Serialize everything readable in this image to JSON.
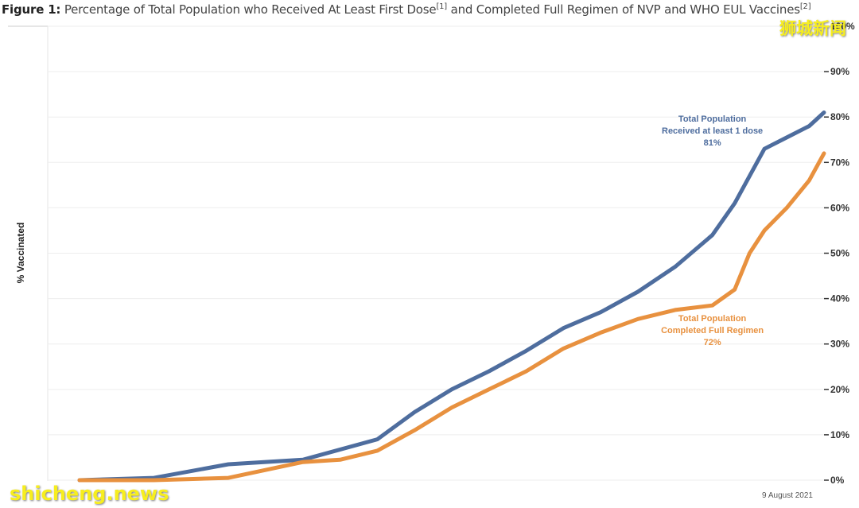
{
  "title": {
    "prefix": "Figure 1:",
    "text_part1": "Percentage of Total Population who Received At Least First Dose",
    "sup1": "[1]",
    "text_part2": "and Completed Full Regimen of NVP and WHO EUL Vaccines",
    "sup2": "[2]"
  },
  "watermark_cn": "狮城新闻",
  "watermark_en": "shicheng.news",
  "chart_data": {
    "type": "line",
    "title": "Percentage of Total Population who Received At Least First Dose and Completed Full Regimen of NVP and WHO EUL Vaccines",
    "ylabel": "% Vaccinated",
    "xlabel": "",
    "ylim": [
      0,
      100
    ],
    "yticks": [
      "0%",
      "10%",
      "20%",
      "30%",
      "40%",
      "50%",
      "60%",
      "70%",
      "80%",
      "90%",
      "100%"
    ],
    "x_end_label": "9 August 2021",
    "grid": true,
    "series": [
      {
        "name": "Total Population Received at least 1 dose",
        "label_lines": [
          "Total Population",
          "Received at least 1 dose",
          "81%"
        ],
        "color": "#4e6d9e",
        "x": [
          0,
          10,
          20,
          30,
          40,
          45,
          50,
          55,
          60,
          65,
          70,
          75,
          80,
          85,
          88,
          90,
          92,
          95,
          98,
          100
        ],
        "values": [
          0,
          0.5,
          3.5,
          4.5,
          9,
          15,
          20,
          24,
          28.5,
          33.5,
          37,
          41.5,
          47,
          54,
          61,
          67,
          73,
          75.5,
          78,
          81
        ]
      },
      {
        "name": "Total Population Completed Full Regimen",
        "label_lines": [
          "Total Population",
          "Completed Full Regimen",
          "72%"
        ],
        "color": "#e8913f",
        "x": [
          0,
          10,
          20,
          30,
          35,
          40,
          45,
          50,
          55,
          60,
          65,
          70,
          75,
          80,
          85,
          88,
          90,
          92,
          95,
          98,
          100
        ],
        "values": [
          0,
          0,
          0.5,
          4,
          4.5,
          6.5,
          11,
          16,
          20,
          24,
          29,
          32.5,
          35.5,
          37.5,
          38.5,
          42,
          50,
          55,
          60,
          66,
          72
        ]
      }
    ],
    "annotations": [
      {
        "series": 0,
        "text_lines": [
          "Total Population",
          "Received at least 1 dose",
          "81%"
        ],
        "at_x": 85,
        "at_y": 79
      },
      {
        "series": 1,
        "text_lines": [
          "Total Population",
          "Completed Full Regimen",
          "72%"
        ],
        "at_x": 85,
        "at_y": 35
      }
    ]
  }
}
